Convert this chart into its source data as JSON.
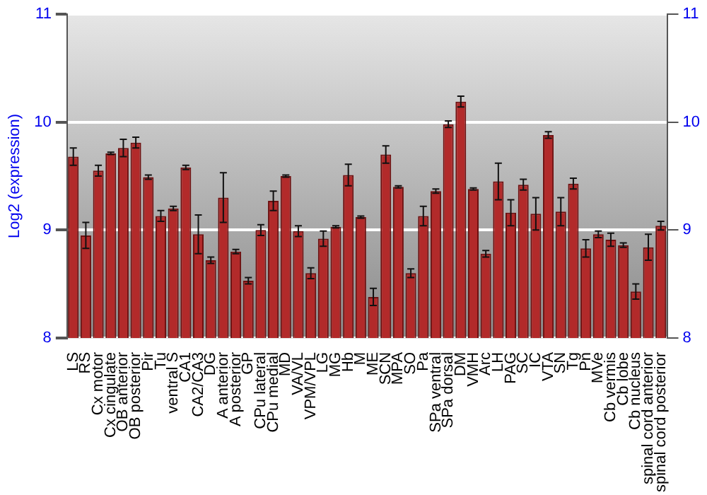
{
  "chart_data": {
    "type": "bar",
    "ylabel": "Log2 (expression)",
    "categories": [
      "LS",
      "RS",
      "Cx motor",
      "Cx cingulate",
      "OB anterior",
      "OB posterior",
      "Pir",
      "Tu",
      "ventral S",
      "CA1",
      "CA2/CA3",
      "DG",
      "A anterior",
      "A posterior",
      "GP",
      "CPu lateral",
      "CPu medial",
      "MD",
      "VA/VL",
      "VPM/VPL",
      "LG",
      "MG",
      "Hb",
      "M",
      "ME",
      "SCN",
      "MPA",
      "SO",
      "Pa",
      "SPa ventral",
      "SPa dorsal",
      "DM",
      "VMH",
      "Arc",
      "LH",
      "PAG",
      "SC",
      "IC",
      "VTA",
      "SN",
      "Tg",
      "Pn",
      "MVe",
      "Cb vermis",
      "Cb lobe",
      "Cb nucleus",
      "spinal cord anterior",
      "spinal cord posterior"
    ],
    "values": [
      9.68,
      8.95,
      9.55,
      9.71,
      9.76,
      9.81,
      9.49,
      9.13,
      9.2,
      9.58,
      8.96,
      8.72,
      9.3,
      8.8,
      8.53,
      9.0,
      9.27,
      9.5,
      8.99,
      8.6,
      8.92,
      9.03,
      9.51,
      9.12,
      8.38,
      9.7,
      9.4,
      8.6,
      9.13,
      9.36,
      9.98,
      10.19,
      9.38,
      8.78,
      9.45,
      9.16,
      9.42,
      9.15,
      9.88,
      9.17,
      9.43,
      8.83,
      8.96,
      8.91,
      8.86,
      8.43,
      8.84,
      9.04
    ],
    "errors": [
      0.08,
      0.12,
      0.05,
      0.01,
      0.08,
      0.05,
      0.02,
      0.05,
      0.02,
      0.02,
      0.18,
      0.03,
      0.23,
      0.02,
      0.03,
      0.05,
      0.09,
      0.01,
      0.05,
      0.05,
      0.07,
      0.01,
      0.1,
      0.01,
      0.08,
      0.08,
      0.01,
      0.04,
      0.09,
      0.02,
      0.03,
      0.05,
      0.01,
      0.03,
      0.17,
      0.12,
      0.05,
      0.15,
      0.03,
      0.13,
      0.05,
      0.08,
      0.03,
      0.06,
      0.02,
      0.07,
      0.12,
      0.04
    ],
    "color": "#b22a2a",
    "ylim": [
      8,
      11
    ],
    "yticks": [
      8,
      9,
      10,
      11
    ],
    "y2lim": [
      8,
      11
    ],
    "y2ticks": [
      8,
      9,
      10,
      11
    ],
    "grid": "y",
    "legend": false
  }
}
